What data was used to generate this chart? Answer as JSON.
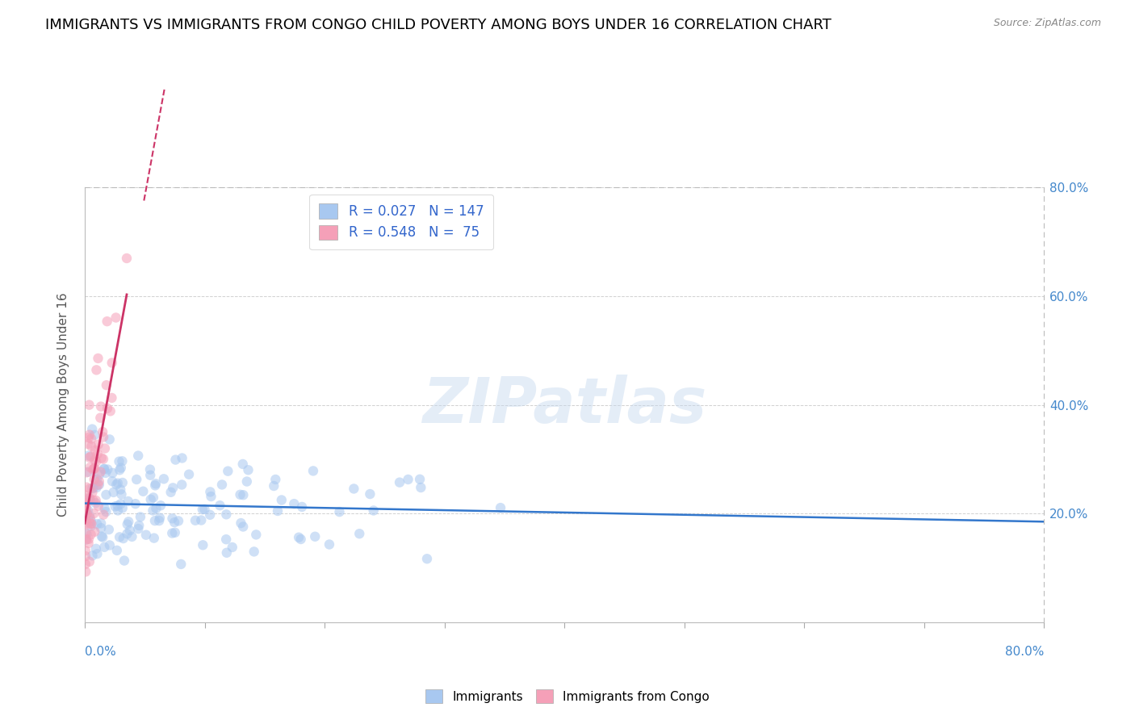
{
  "title": "IMMIGRANTS VS IMMIGRANTS FROM CONGO CHILD POVERTY AMONG BOYS UNDER 16 CORRELATION CHART",
  "source": "Source: ZipAtlas.com",
  "ylabel": "Child Poverty Among Boys Under 16",
  "xlabel": "",
  "watermark": "ZIPatlas",
  "xlim": [
    0.0,
    0.8
  ],
  "ylim": [
    0.0,
    0.8
  ],
  "xtick_minor_vals": [
    0.0,
    0.1,
    0.2,
    0.3,
    0.4,
    0.5,
    0.6,
    0.7,
    0.8
  ],
  "xtick_label_vals": [
    0.0,
    0.8
  ],
  "xtick_label_texts": [
    "0.0%",
    "80.0%"
  ],
  "ytick_vals": [
    0.2,
    0.4,
    0.6,
    0.8
  ],
  "ytick_labels": [
    "20.0%",
    "40.0%",
    "60.0%",
    "80.0%"
  ],
  "series1_color": "#a8c8f0",
  "series2_color": "#f5a0b8",
  "line1_color": "#3377cc",
  "line2_color": "#cc3366",
  "series1_label": "Immigrants",
  "series2_label": "Immigrants from Congo",
  "R1": 0.027,
  "N1": 147,
  "R2": 0.548,
  "N2": 75,
  "legend_text_color": "#3366cc",
  "tick_color": "#4488cc",
  "title_fontsize": 13,
  "axis_label_fontsize": 11,
  "tick_fontsize": 11,
  "marker_size": 80,
  "marker_alpha": 0.55,
  "seed": 42
}
